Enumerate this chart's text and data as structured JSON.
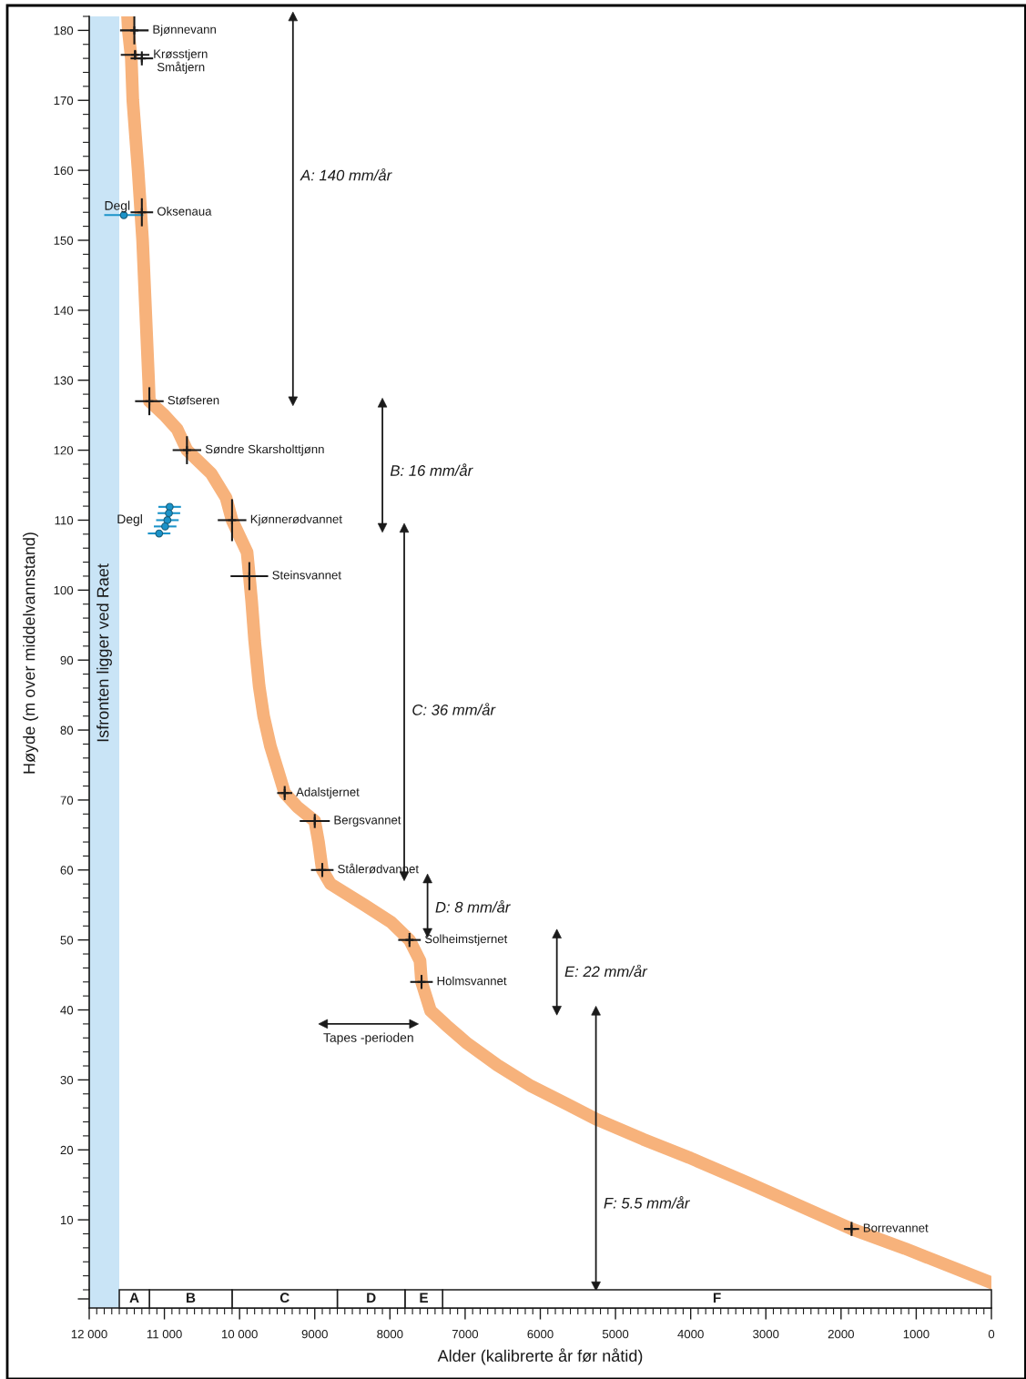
{
  "chart_data": [
    {
      "type": "line",
      "ylabel": "Høyde (m over middelvannstand)",
      "xlim": [
        12000,
        0
      ],
      "ylim": [
        0,
        182
      ],
      "tick_labels": "y",
      "yticks": [
        10,
        20,
        30,
        40,
        50,
        60,
        70,
        80,
        90,
        100,
        110,
        120,
        130,
        140,
        150,
        160,
        170,
        180
      ],
      "series": [
        {
          "color": "#f7b27b",
          "x": [
            11490,
            11480,
            11440,
            11420,
            11350,
            11290,
            11250,
            11210,
            11200,
            11000,
            10830,
            10700,
            10380,
            10180,
            10100,
            9900,
            9870,
            9840,
            9800,
            9740,
            9680,
            9590,
            9490,
            9400,
            9230,
            9000,
            8950,
            8900,
            8790,
            8340,
            7980,
            7740,
            7600,
            7580,
            7460,
            7250,
            6970,
            6570,
            6120,
            5640,
            5240,
            4630,
            4020,
            3220,
            1860,
            1150,
            0
          ],
          "values": [
            182,
            180,
            176,
            170,
            160,
            150,
            140,
            130,
            127,
            125,
            123,
            120,
            116.7,
            113.2,
            110,
            105.4,
            102,
            98.5,
            92.8,
            86.3,
            82,
            77.7,
            74.2,
            71,
            69,
            67,
            64,
            60,
            58,
            55,
            52.5,
            50,
            47,
            44,
            39.9,
            37.8,
            35.2,
            32.1,
            29.1,
            26.5,
            24.3,
            21.5,
            18.9,
            15.2,
            8.7,
            5.9,
            1
          ]
        },
        {
          "type": "scatter",
          "color": "#1a1a1a",
          "marker": "cross",
          "x": [
            11400,
            11390,
            11300,
            11300,
            11200,
            10700,
            10100,
            9870,
            9400,
            9000,
            8900,
            7740,
            7580,
            1860
          ],
          "values": [
            180,
            176.5,
            176,
            154,
            127,
            120,
            110,
            102,
            71,
            67,
            60,
            50,
            44,
            8.7
          ],
          "xerrors": [
            190,
            190,
            150,
            150,
            190,
            190,
            190,
            250,
            100,
            200,
            150,
            150,
            150,
            100
          ],
          "errors": [
            2,
            0.7,
            1,
            2,
            2,
            2,
            3,
            2,
            1,
            1,
            1,
            1,
            1,
            1
          ]
        },
        {
          "type": "scatter",
          "color": "#1b93c9",
          "marker": "circle",
          "x": [
            11540
          ],
          "values": [
            153.6
          ],
          "xerrors": [
            260
          ]
        },
        {
          "type": "scatter",
          "color": "#1b93c9",
          "marker": "circle",
          "x": [
            10930,
            10940,
            10960,
            10990,
            11070
          ],
          "values": [
            111.9,
            111,
            110,
            109.1,
            108.1
          ],
          "xerrors": [
            150,
            150,
            150,
            150,
            150
          ]
        },
        {
          "type": "line",
          "color": "#1a1a1a",
          "marker": "triangle",
          "x": [
            9290,
            9290
          ],
          "values": [
            182,
            127
          ]
        },
        {
          "type": "line",
          "color": "#1a1a1a",
          "marker": "triangle",
          "x": [
            8100,
            8100
          ],
          "values": [
            126.8,
            108.9
          ]
        },
        {
          "type": "line",
          "color": "#1a1a1a",
          "marker": "triangle",
          "x": [
            7810,
            7810
          ],
          "values": [
            108.9,
            59.1
          ]
        },
        {
          "type": "line",
          "color": "#1a1a1a",
          "marker": "triangle",
          "x": [
            7500,
            7500
          ],
          "values": [
            58.8,
            51
          ]
        },
        {
          "type": "line",
          "color": "#1a1a1a",
          "marker": "triangle",
          "x": [
            5780,
            5780
          ],
          "values": [
            50.9,
            39.9
          ]
        },
        {
          "type": "line",
          "color": "#1a1a1a",
          "marker": "triangle",
          "x": [
            5260,
            5260
          ],
          "values": [
            39.9,
            0.5
          ]
        },
        {
          "type": "line",
          "name": "Tapes -perioden",
          "color": "#1a1a1a",
          "marker": "triangle",
          "x": [
            8890,
            7680
          ],
          "values": [
            38,
            38
          ]
        }
      ],
      "bands": [
        {
          "axis": "x",
          "from": 12000,
          "to": 11600,
          "label": "Isfronten ligger ved Raet",
          "color": "#c9e4f6"
        }
      ],
      "annotations": [
        {
          "text": "Bjønnevann",
          "x": 11400,
          "y": 180
        },
        {
          "text": "Krøsstjern",
          "x": 11390,
          "y": 176.5
        },
        {
          "text": "Småtjern",
          "x": 11300,
          "y": 176
        },
        {
          "text": "Oksenaua",
          "x": 11300,
          "y": 154
        },
        {
          "text": "Degl",
          "x": 11540,
          "y": 153.6
        },
        {
          "text": "Støfseren",
          "x": 11200,
          "y": 127
        },
        {
          "text": "Søndre Skarsholttjønn",
          "x": 10700,
          "y": 120
        },
        {
          "text": "Degl",
          "x": 10960,
          "y": 110
        },
        {
          "text": "Kjønnerødvannet",
          "x": 10100,
          "y": 110
        },
        {
          "text": "Steinsvannet",
          "x": 9870,
          "y": 102
        },
        {
          "text": "Adalstjernet",
          "x": 9400,
          "y": 71
        },
        {
          "text": "Bergsvannet",
          "x": 9000,
          "y": 67
        },
        {
          "text": "Stålerødvannet",
          "x": 8900,
          "y": 60
        },
        {
          "text": "Solheimstjernet",
          "x": 7740,
          "y": 50
        },
        {
          "text": "Holmsvannet",
          "x": 7580,
          "y": 44
        },
        {
          "text": "Borrevannet",
          "x": 1860,
          "y": 8.7
        },
        {
          "text": "A: 140 mm/år",
          "x": 9290,
          "y": 159.1
        },
        {
          "text": "B: 16 mm/år",
          "x": 8100,
          "y": 116.9
        },
        {
          "text": "C: 36 mm/år",
          "x": 7810,
          "y": 82.7
        },
        {
          "text": "D: 8 mm/år",
          "x": 7500,
          "y": 54.5
        },
        {
          "text": "E: 22 mm/år",
          "x": 5780,
          "y": 45.3
        },
        {
          "text": "F: 5.5 mm/år",
          "x": 5260,
          "y": 12.2
        }
      ]
    },
    {
      "type": "bar",
      "orientation": "horizontal",
      "stacked": true,
      "categories": [
        null
      ],
      "xlim": [
        12000,
        0
      ],
      "tick_labels": "x",
      "xlabel": "Alder (kalibrerte år før nåtid)",
      "xticks": [
        {
          "value": 12000,
          "label": "12 000"
        },
        {
          "value": 11000,
          "label": "11 000"
        },
        {
          "value": 10000,
          "label": "10 000"
        },
        9000,
        8000,
        7000,
        6000,
        5000,
        4000,
        3000,
        2000,
        1000,
        0
      ],
      "series": [
        {
          "name": "F",
          "color": "#ffffff",
          "values": [
            7300
          ]
        },
        {
          "name": "E",
          "color": "#ffffff",
          "values": [
            500
          ]
        },
        {
          "name": "D",
          "color": "#ffffff",
          "values": [
            900
          ]
        },
        {
          "name": "C",
          "color": "#ffffff",
          "values": [
            1400
          ]
        },
        {
          "name": "B",
          "color": "#ffffff",
          "values": [
            1100
          ]
        },
        {
          "name": "A",
          "color": "#ffffff",
          "values": [
            400
          ]
        }
      ],
      "bands": [
        {
          "axis": "x",
          "from": 12000,
          "to": 11600,
          "color": "#c9e4f6"
        }
      ]
    }
  ]
}
